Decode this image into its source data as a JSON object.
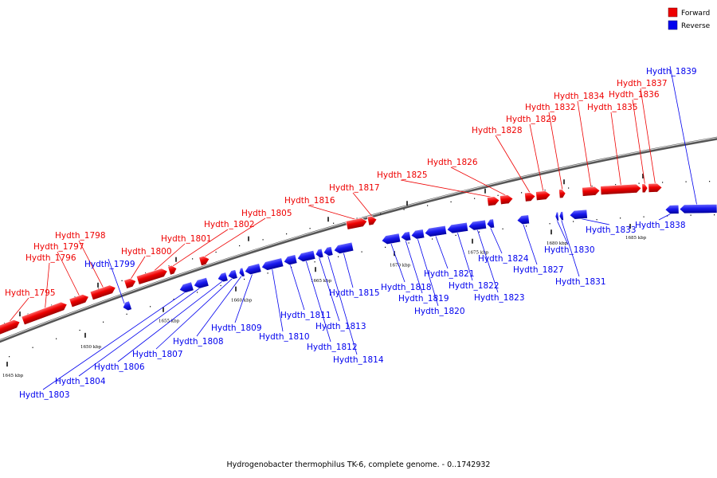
{
  "legend": {
    "forward": {
      "label": "Forward",
      "color": "#ee0000"
    },
    "reverse": {
      "label": "Reverse",
      "color": "#0000ee"
    }
  },
  "caption": "Hydrogenobacter thermophilus TK-6, complete genome. - 0..1742932",
  "ticks": [
    "1645 kbp",
    "1650 kbp",
    "1655 kbp",
    "1660 kbp",
    "1665 kbp",
    "1670 kbp",
    "1675 kbp",
    "1680 kbp",
    "1685 kbp"
  ],
  "genes": [
    {
      "name": "Hydth_1795",
      "strand": "forward"
    },
    {
      "name": "Hydth_1796",
      "strand": "forward"
    },
    {
      "name": "Hydth_1797",
      "strand": "forward"
    },
    {
      "name": "Hydth_1798",
      "strand": "forward"
    },
    {
      "name": "Hydth_1799",
      "strand": "reverse"
    },
    {
      "name": "Hydth_1800",
      "strand": "forward"
    },
    {
      "name": "Hydth_1801",
      "strand": "forward"
    },
    {
      "name": "Hydth_1802",
      "strand": "forward"
    },
    {
      "name": "Hydth_1803",
      "strand": "reverse"
    },
    {
      "name": "Hydth_1804",
      "strand": "reverse"
    },
    {
      "name": "Hydth_1805",
      "strand": "forward"
    },
    {
      "name": "Hydth_1806",
      "strand": "reverse"
    },
    {
      "name": "Hydth_1807",
      "strand": "reverse"
    },
    {
      "name": "Hydth_1808",
      "strand": "reverse"
    },
    {
      "name": "Hydth_1809",
      "strand": "reverse"
    },
    {
      "name": "Hydth_1810",
      "strand": "reverse"
    },
    {
      "name": "Hydth_1811",
      "strand": "reverse"
    },
    {
      "name": "Hydth_1812",
      "strand": "reverse"
    },
    {
      "name": "Hydth_1813",
      "strand": "reverse"
    },
    {
      "name": "Hydth_1814",
      "strand": "reverse"
    },
    {
      "name": "Hydth_1815",
      "strand": "reverse"
    },
    {
      "name": "Hydth_1816",
      "strand": "forward"
    },
    {
      "name": "Hydth_1817",
      "strand": "forward"
    },
    {
      "name": "Hydth_1818",
      "strand": "reverse"
    },
    {
      "name": "Hydth_1819",
      "strand": "reverse"
    },
    {
      "name": "Hydth_1820",
      "strand": "reverse"
    },
    {
      "name": "Hydth_1821",
      "strand": "reverse"
    },
    {
      "name": "Hydth_1822",
      "strand": "reverse"
    },
    {
      "name": "Hydth_1823",
      "strand": "reverse"
    },
    {
      "name": "Hydth_1824",
      "strand": "reverse"
    },
    {
      "name": "Hydth_1825",
      "strand": "forward"
    },
    {
      "name": "Hydth_1826",
      "strand": "forward"
    },
    {
      "name": "Hydth_1827",
      "strand": "reverse"
    },
    {
      "name": "Hydth_1828",
      "strand": "forward"
    },
    {
      "name": "Hydth_1829",
      "strand": "forward"
    },
    {
      "name": "Hydth_1830",
      "strand": "reverse"
    },
    {
      "name": "Hydth_1831",
      "strand": "reverse"
    },
    {
      "name": "Hydth_1832",
      "strand": "forward"
    },
    {
      "name": "Hydth_1833",
      "strand": "reverse"
    },
    {
      "name": "Hydth_1834",
      "strand": "forward"
    },
    {
      "name": "Hydth_1835",
      "strand": "forward"
    },
    {
      "name": "Hydth_1836",
      "strand": "forward"
    },
    {
      "name": "Hydth_1837",
      "strand": "forward"
    },
    {
      "name": "Hydth_1838",
      "strand": "reverse"
    },
    {
      "name": "Hydth_1839",
      "strand": "reverse"
    }
  ]
}
